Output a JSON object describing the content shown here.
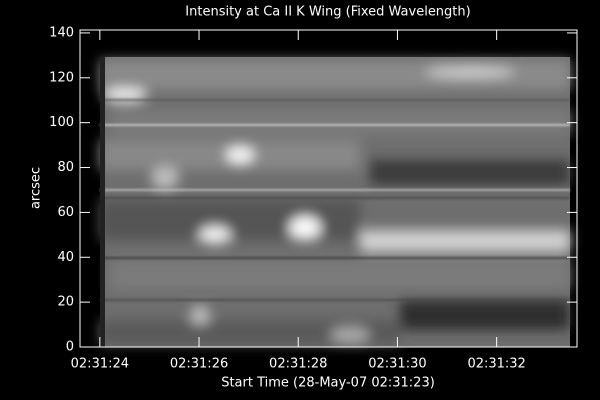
{
  "chart_data": {
    "type": "image",
    "title": "Intensity at Ca II K Wing (Fixed Wavelength)",
    "xlabel": "Start Time (28-May-07 02:31:23)",
    "ylabel": "arcsec",
    "xlim": [
      23.6,
      33.62
    ],
    "xticks": [
      {
        "value": 24,
        "label": "02:31:24"
      },
      {
        "value": 26,
        "label": "02:31:26"
      },
      {
        "value": 28,
        "label": "02:31:28"
      },
      {
        "value": 30,
        "label": "02:31:30"
      },
      {
        "value": 32,
        "label": "02:31:32"
      }
    ],
    "ylim": [
      0,
      141.3
    ],
    "yticks": [
      0,
      20,
      40,
      60,
      80,
      100,
      120,
      140
    ]
  }
}
